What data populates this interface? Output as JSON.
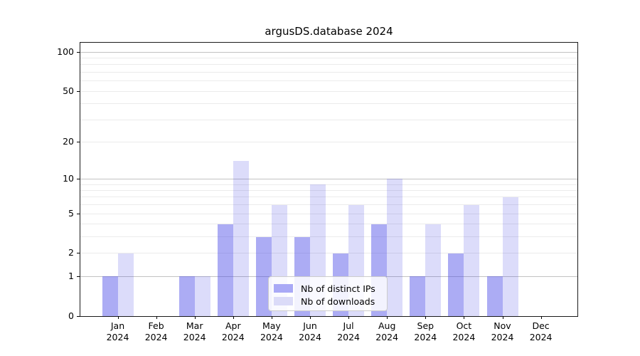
{
  "title": "argusDS.database 2024",
  "chart_data": {
    "type": "bar",
    "title": "argusDS.database 2024",
    "categories": [
      "Jan",
      "Feb",
      "Mar",
      "Apr",
      "May",
      "Jun",
      "Jul",
      "Aug",
      "Sep",
      "Oct",
      "Nov",
      "Dec"
    ],
    "xtick_year": "2024",
    "series": [
      {
        "name": "Nb of distinct IPs",
        "color": "#a9a9f6",
        "base_color": "#4646e6",
        "alpha": 0.45,
        "values": [
          1,
          0,
          1,
          4,
          3,
          3,
          2,
          4,
          1,
          2,
          1,
          0
        ]
      },
      {
        "name": "Nb of downloads",
        "color": "#dbdbf8",
        "base_color": "#4646e6",
        "alpha": 0.19,
        "values": [
          2,
          0,
          1,
          14,
          6,
          9,
          6,
          10,
          4,
          6,
          7,
          0
        ]
      }
    ],
    "yscale": "log10(1+y)",
    "ylim": [
      0,
      116
    ],
    "yticks": [
      0,
      1,
      2,
      5,
      10,
      20,
      50,
      100
    ],
    "gridlines_major": [
      1,
      10,
      100
    ],
    "gridlines_minor": [
      2,
      3,
      4,
      5,
      6,
      7,
      8,
      9,
      20,
      30,
      40,
      50,
      60,
      70,
      80,
      90
    ],
    "grid_major_color": "#c2c2c2",
    "grid_minor_color": "#ebebeb",
    "legend_position": "lower center"
  }
}
